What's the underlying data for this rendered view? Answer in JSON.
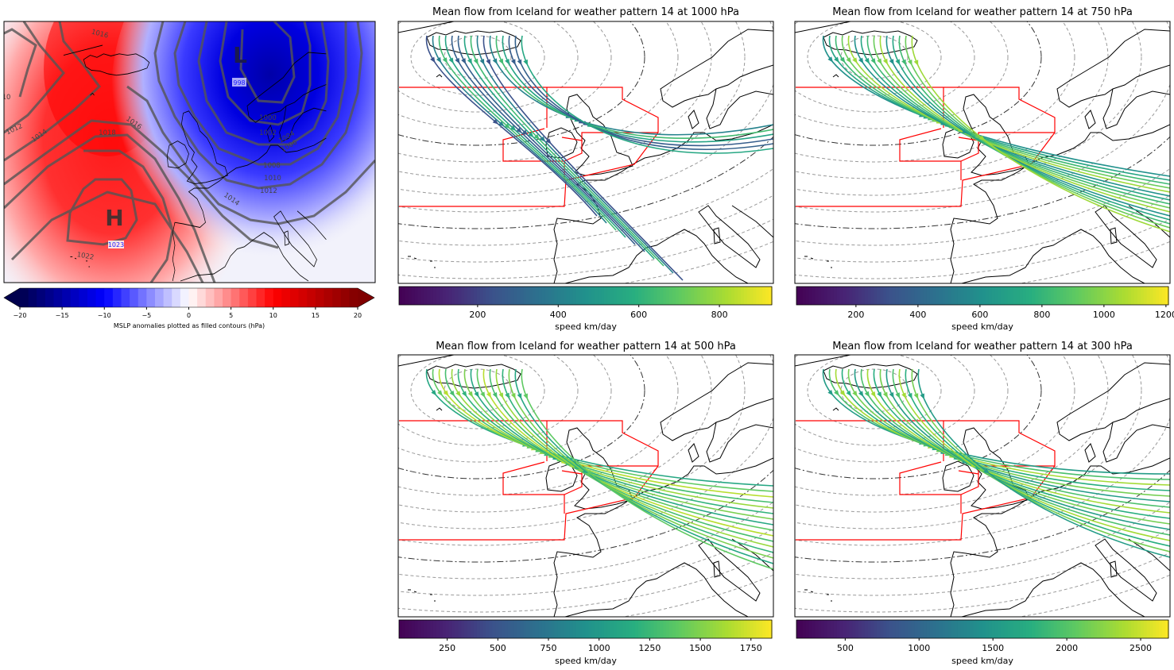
{
  "mslp_panel": {
    "high_label": "H",
    "low_label": "L",
    "high_value": "1023",
    "low_value": "998",
    "contour_labels": [
      "1016",
      "10",
      "1012",
      "1014",
      "1016",
      "1018",
      "1022",
      "1000",
      "1002",
      "1004",
      "1006",
      "1008",
      "1010",
      "1012",
      "1014"
    ],
    "colorbar": {
      "cmap": "seismic",
      "range": [
        -20,
        20
      ],
      "extend": "both",
      "ticks": [
        -20,
        -15,
        -10,
        -5,
        0,
        5,
        10,
        15,
        20
      ],
      "tick_labels": [
        "−20",
        "−15",
        "−10",
        "−5",
        "0",
        "5",
        "10",
        "15",
        "20"
      ],
      "label": "MSLP anomalies plotted as filled contours (hPa)"
    }
  },
  "flow_panels": [
    {
      "title": "Mean flow from Iceland for weather pattern 14 at 1000 hPa",
      "colorbar": {
        "cmap": "viridis",
        "range": [
          5,
          930
        ],
        "ticks": [
          200,
          400,
          600,
          800
        ],
        "tick_labels": [
          "200",
          "400",
          "600",
          "800"
        ],
        "label": "speed km/day"
      }
    },
    {
      "title": "Mean flow from Iceland for weather pattern 14 at 750 hPa",
      "colorbar": {
        "cmap": "viridis",
        "range": [
          8,
          1208
        ],
        "ticks": [
          200,
          400,
          600,
          800,
          1000,
          1200
        ],
        "tick_labels": [
          "200",
          "400",
          "600",
          "800",
          "1000",
          "1200"
        ],
        "label": "speed km/day"
      }
    },
    {
      "title": "Mean flow from Iceland for weather pattern 14 at 500 hPa",
      "colorbar": {
        "cmap": "viridis",
        "range": [
          12,
          1853
        ],
        "ticks": [
          250,
          500,
          750,
          1000,
          1250,
          1500,
          1750
        ],
        "tick_labels": [
          "250",
          "500",
          "750",
          "1000",
          "1250",
          "1500",
          "1750"
        ],
        "label": "speed km/day"
      }
    },
    {
      "title": "Mean flow from Iceland for weather pattern 14 at 300 hPa",
      "colorbar": {
        "cmap": "viridis",
        "range": [
          170,
          2688
        ],
        "ticks": [
          500,
          1000,
          1500,
          2000,
          2500
        ],
        "tick_labels": [
          "500",
          "1000",
          "1500",
          "2000",
          "2500"
        ],
        "label": "speed km/day"
      }
    }
  ],
  "colors": {
    "region_outline": "#ff0000",
    "contour_lines": "#555555",
    "extreme_label": "#1a1aff"
  }
}
